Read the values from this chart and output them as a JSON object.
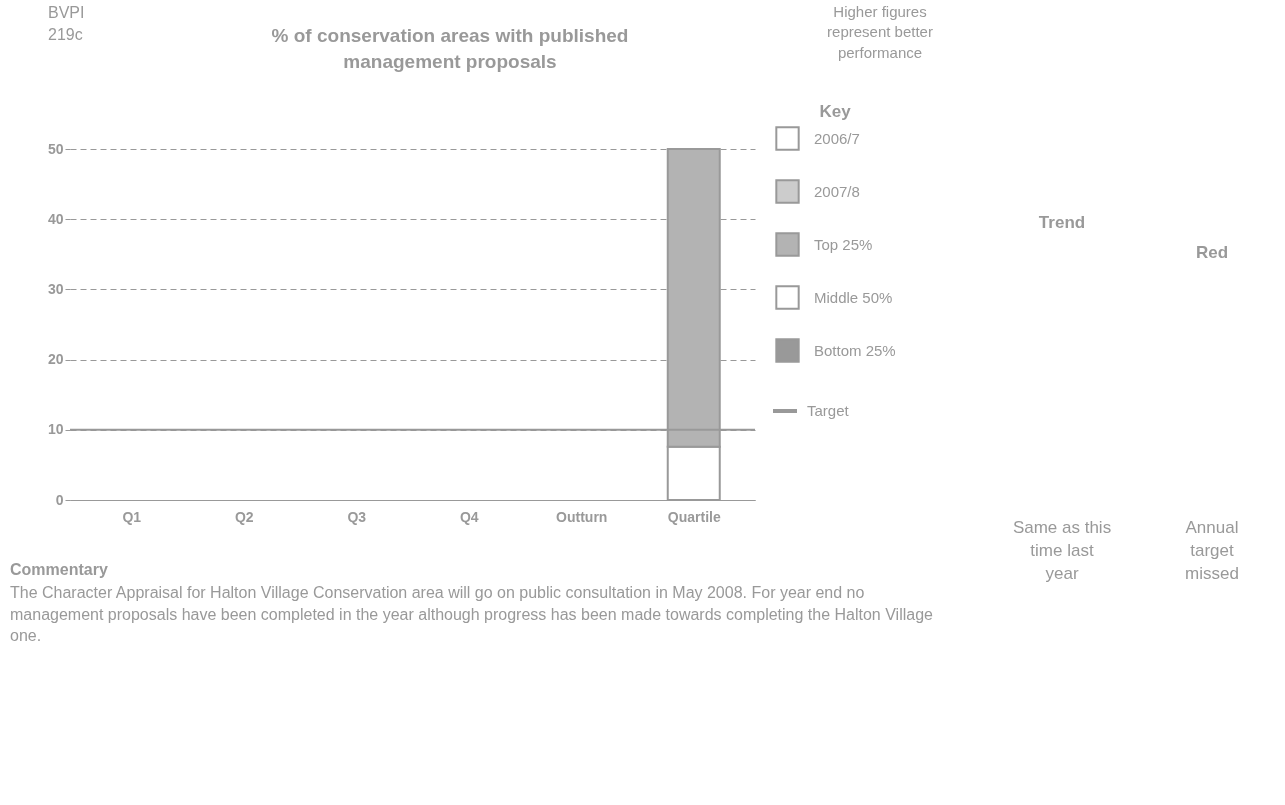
{
  "chart_data": {
    "type": "bar",
    "title": "% of conservation areas with published management proposals",
    "categories": [
      "Q1",
      "Q2",
      "Q3",
      "Q4",
      "Outturn",
      "Quartile"
    ],
    "stacked": true,
    "series": [
      {
        "name": "2006/7",
        "color": "#ffffff",
        "values": [
          null,
          null,
          null,
          null,
          null,
          null
        ]
      },
      {
        "name": "2007/8",
        "color": "#cccccc",
        "values": [
          null,
          null,
          null,
          null,
          null,
          null
        ]
      },
      {
        "name": "Bottom 25%",
        "color": "#999999",
        "values": [
          null,
          null,
          null,
          null,
          null,
          null
        ]
      },
      {
        "name": "Middle 50%",
        "color": "#ffffff",
        "values": [
          null,
          null,
          null,
          null,
          null,
          7.6
        ]
      },
      {
        "name": "Top 25%",
        "color": "#b3b3b3",
        "values": [
          null,
          null,
          null,
          null,
          null,
          42.4
        ]
      }
    ],
    "ylim": [
      0,
      50
    ],
    "yticks": [
      0,
      10,
      20,
      30,
      40,
      50
    ],
    "grid": "y",
    "ref_lines": [
      {
        "axis": "y",
        "value": 10,
        "label": "Target",
        "color": "#999999"
      }
    ],
    "legend": "right",
    "legend_title": "Key",
    "annotations": [
      "BVPI 219c",
      "Higher figures represent better performance",
      "Commentary",
      "The Character Appraisal for Halton Village Conservation area will go on public consultation in May 2008. For year end no management proposals have been completed in the year although progress has been made towards completing the Halton Village one.",
      "Trend",
      "Red",
      "Same as this time last year",
      "Annual target missed"
    ]
  }
}
